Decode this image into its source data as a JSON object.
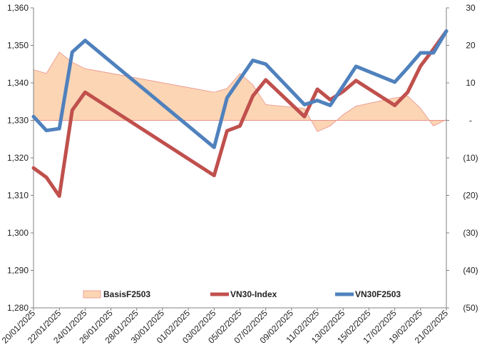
{
  "chart_data": {
    "type": "line",
    "x": [
      "20/01/2025",
      "21/01/2025",
      "22/01/2025",
      "23/01/2025",
      "24/01/2025",
      "03/02/2025",
      "04/02/2025",
      "05/02/2025",
      "06/02/2025",
      "07/02/2025",
      "10/02/2025",
      "11/02/2025",
      "12/02/2025",
      "13/02/2025",
      "14/02/2025",
      "17/02/2025",
      "18/02/2025",
      "19/02/2025",
      "20/02/2025",
      "21/02/2025"
    ],
    "x_tick_labels": [
      "20/01/2025",
      "22/01/2025",
      "24/01/2025",
      "26/01/2025",
      "28/01/2025",
      "30/01/2025",
      "01/02/2025",
      "03/02/2025",
      "05/02/2025",
      "07/02/2025",
      "09/02/2025",
      "11/02/2025",
      "13/02/2025",
      "15/02/2025",
      "17/02/2025",
      "19/02/2025",
      "21/02/2025"
    ],
    "y_left": {
      "min": 1280,
      "max": 1360,
      "step": 10,
      "tick_labels": [
        "1,280",
        "1,290",
        "1,300",
        "1,310",
        "1,320",
        "1,330",
        "1,340",
        "1,350",
        "1,360"
      ]
    },
    "y_right": {
      "min": -50,
      "max": 30,
      "step": 10,
      "tick_labels": [
        "(50)",
        "(40)",
        "(30)",
        "(20)",
        "(10)",
        "-",
        "10",
        "20",
        "30"
      ]
    },
    "series": [
      {
        "name": "BasisF2503",
        "kind": "area",
        "axis": "right",
        "color": "#fcd5b4",
        "edge_color": "#e8908a",
        "values": [
          13.5,
          12.5,
          18.2,
          15.5,
          13.8,
          7.5,
          8.5,
          12.5,
          9.5,
          4.2,
          3.2,
          -3.0,
          -1.5,
          1.5,
          3.8,
          6.0,
          6.5,
          3.2,
          -1.5,
          0.2
        ]
      },
      {
        "name": "VN30-Index",
        "kind": "line",
        "axis": "left",
        "color": "#c0504d",
        "values": [
          1317.3,
          1314.8,
          1309.8,
          1332.7,
          1337.5,
          1315.3,
          1327.2,
          1328.5,
          1336.5,
          1340.8,
          1331.0,
          1338.3,
          1335.5,
          1337.7,
          1340.6,
          1334.0,
          1337.5,
          1344.5,
          1349.0,
          1353.8
        ]
      },
      {
        "name": "VN30F2503",
        "kind": "line",
        "axis": "left",
        "color": "#4f81bd",
        "values": [
          1331.0,
          1327.3,
          1327.8,
          1348.2,
          1351.3,
          1322.8,
          1336.0,
          1341.0,
          1346.0,
          1345.0,
          1334.2,
          1335.3,
          1334.0,
          1339.2,
          1344.4,
          1340.2,
          1344.0,
          1348.0,
          1348.0,
          1353.8
        ]
      }
    ],
    "legend_position": "bottom-inside",
    "grid": false
  }
}
